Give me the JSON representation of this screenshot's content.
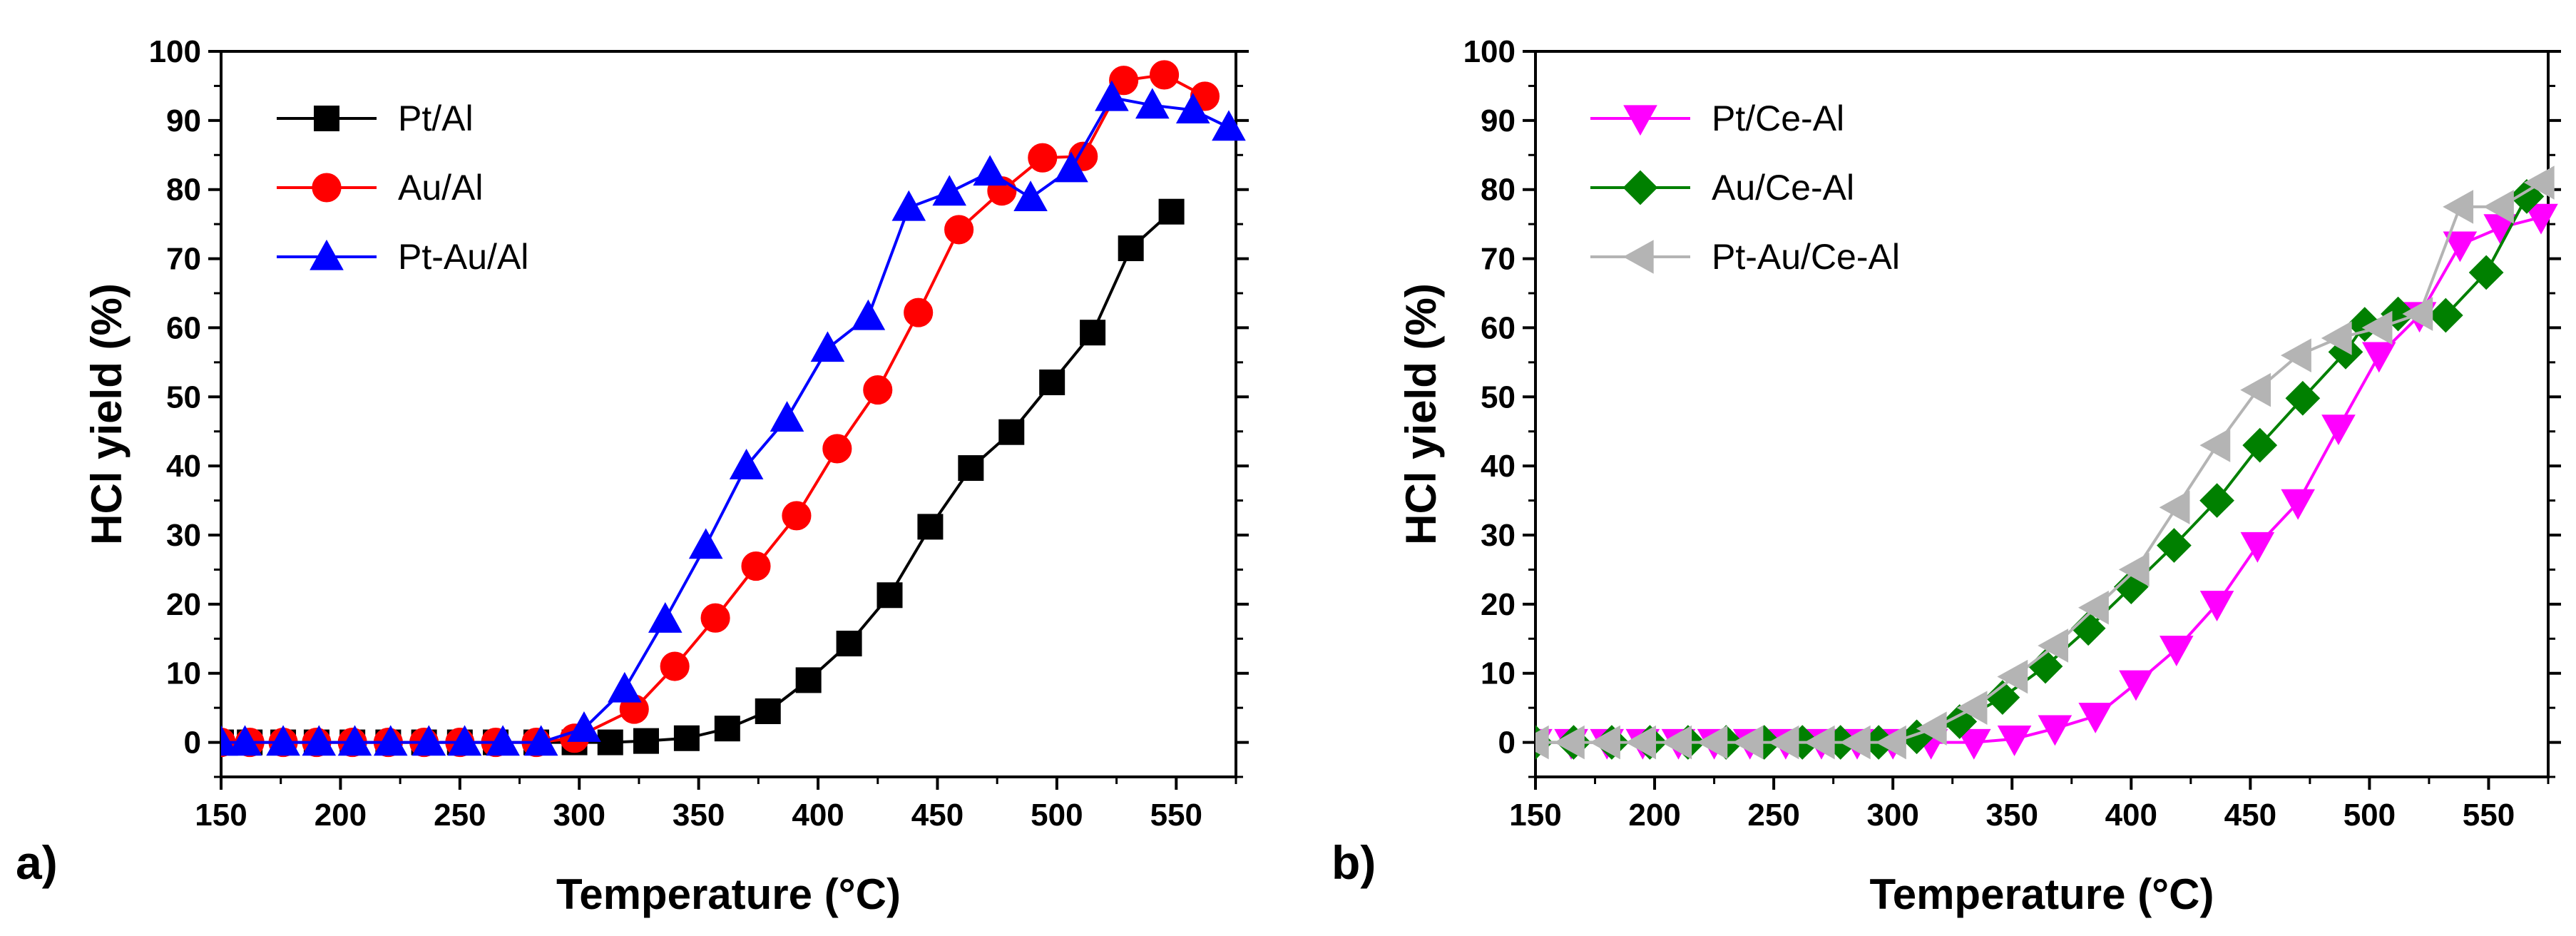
{
  "chart_data": [
    {
      "type": "line",
      "panel_label": "a)",
      "xlabel": "Temperature (°C)",
      "ylabel": "HCl yield (%)",
      "xlim": [
        150,
        575
      ],
      "ylim": [
        -5,
        100
      ],
      "xticks": [
        150,
        200,
        250,
        300,
        350,
        400,
        450,
        500,
        550
      ],
      "yticks": [
        0,
        10,
        20,
        30,
        40,
        50,
        60,
        70,
        80,
        90,
        100
      ],
      "legend_position": "top-left",
      "series": [
        {
          "name": "Pt/Al",
          "color": "#000000",
          "marker": "square",
          "x": [
            150,
            162,
            176,
            190,
            205,
            220,
            235,
            250,
            265,
            282,
            298,
            313,
            328,
            345,
            362,
            379,
            396,
            413,
            430,
            447,
            464,
            481,
            498,
            515,
            531,
            548
          ],
          "y": [
            0,
            0,
            0,
            0,
            0,
            0,
            0,
            0,
            0,
            0,
            0,
            0,
            0.2,
            0.6,
            2,
            4.5,
            9,
            14.3,
            21.3,
            31.2,
            39.7,
            44.9,
            52.1,
            59.3,
            71.5,
            76.8
          ]
        },
        {
          "name": "Au/Al",
          "color": "#ff0000",
          "marker": "circle",
          "x": [
            150,
            162,
            176,
            190,
            205,
            220,
            235,
            250,
            265,
            282,
            298,
            323,
            340,
            357,
            374,
            391,
            408,
            425,
            442,
            459,
            477,
            494,
            511,
            528,
            545,
            562
          ],
          "y": [
            0,
            0,
            0,
            0,
            0,
            0,
            0,
            0,
            0,
            0,
            0.6,
            4.8,
            11,
            18,
            25.5,
            32.8,
            42.5,
            51,
            62.2,
            74.2,
            79.8,
            84.6,
            84.8,
            95.8,
            96.6,
            93.5
          ]
        },
        {
          "name": "Pt-Au/Al",
          "color": "#0000ff",
          "marker": "triangle-up",
          "x": [
            150,
            160,
            176,
            191,
            206,
            221,
            237,
            252,
            268,
            284,
            302,
            319,
            336,
            353,
            370,
            387,
            404,
            421,
            438,
            455,
            472,
            489,
            506,
            523,
            540,
            557,
            572
          ],
          "y": [
            0,
            0,
            0,
            0,
            0,
            0,
            0,
            0,
            0,
            0,
            2,
            7.7,
            17.8,
            28.5,
            40,
            46.9,
            57,
            61.6,
            77.4,
            79.6,
            82.5,
            78.8,
            83,
            93.3,
            92.2,
            91.5,
            89
          ]
        }
      ]
    },
    {
      "type": "line",
      "panel_label": "b)",
      "xlabel": "Temperature (°C)",
      "ylabel": "HCl yield (%)",
      "xlim": [
        150,
        575
      ],
      "ylim": [
        -5,
        100
      ],
      "xticks": [
        150,
        200,
        250,
        300,
        350,
        400,
        450,
        500,
        550
      ],
      "yticks": [
        0,
        10,
        20,
        30,
        40,
        50,
        60,
        70,
        80,
        90,
        100
      ],
      "legend_position": "top-left",
      "series": [
        {
          "name": "Pt/Ce-Al",
          "color": "#ff00ff",
          "marker": "triangle-down",
          "x": [
            150,
            165,
            180,
            195,
            210,
            225,
            240,
            255,
            270,
            285,
            300,
            316,
            334,
            351,
            368,
            385,
            402,
            419,
            436,
            453,
            470,
            487,
            504,
            521,
            538,
            555,
            572
          ],
          "y": [
            0,
            0,
            0,
            0,
            0,
            0,
            0,
            0,
            0,
            0,
            0,
            0,
            0,
            0.5,
            2,
            3.8,
            8.5,
            13.5,
            20,
            28.5,
            34.7,
            45.5,
            56,
            61.8,
            72,
            74.5,
            76
          ]
        },
        {
          "name": "Au/Ce-Al",
          "color": "#008000",
          "marker": "diamond",
          "x": [
            150,
            166,
            182,
            198,
            214,
            230,
            246,
            262,
            278,
            294,
            310,
            328,
            346,
            364,
            382,
            400,
            418,
            436,
            454,
            472,
            490,
            498,
            512,
            532,
            549,
            566
          ],
          "y": [
            0,
            0,
            0,
            0,
            0,
            0,
            0,
            0,
            0,
            0,
            0.8,
            3,
            6.5,
            11,
            16.5,
            22.5,
            28.5,
            35,
            43,
            49.8,
            56.5,
            60.5,
            62,
            61.8,
            68,
            79
          ]
        },
        {
          "name": "Pt-Au/Ce-Al",
          "color": "#b4b4b4",
          "marker": "triangle-left",
          "x": [
            150,
            165,
            180,
            195,
            210,
            225,
            240,
            255,
            270,
            285,
            300,
            317,
            334,
            351,
            368,
            385,
            402,
            419,
            436,
            453,
            470,
            487,
            504,
            521,
            538,
            555,
            572
          ],
          "y": [
            0,
            0,
            0,
            0,
            0,
            0,
            0,
            0,
            0,
            0,
            0,
            2,
            5,
            9.5,
            14,
            19.5,
            25,
            34,
            43,
            51,
            56,
            58.5,
            60,
            62,
            77.5,
            77.5,
            81
          ]
        }
      ]
    }
  ]
}
